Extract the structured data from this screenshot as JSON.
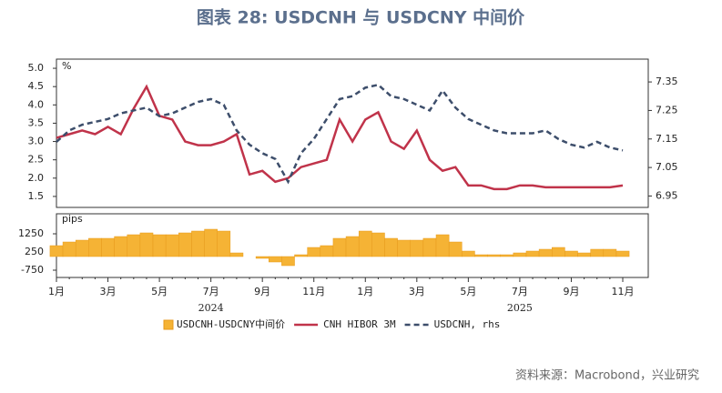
{
  "chart_data": {
    "type": "combo",
    "title": "图表 28: USDCNH 与 USDCNY 中间价",
    "source": "资料来源：Macrobond，兴业研究",
    "y_unit": "%",
    "y_unit_bottom": "pips",
    "year_labels": [
      "2024",
      "2025"
    ],
    "categories": [
      "1月",
      null,
      null,
      null,
      "3月",
      null,
      null,
      null,
      "5月",
      null,
      null,
      null,
      "7月",
      null,
      null,
      null,
      "9月",
      null,
      null,
      null,
      "11月",
      null,
      null,
      null,
      "1月",
      null,
      null,
      null,
      "3月",
      null,
      null,
      null,
      "5月",
      null,
      null,
      null,
      "7月",
      null,
      null,
      null,
      "9月",
      null,
      null,
      null,
      "11月"
    ],
    "ylim": [
      1.2,
      5.25
    ],
    "yticks": [
      1.5,
      {
        "value": 2,
        "label": "2.0"
      },
      2.5,
      {
        "value": 3,
        "label": "3.0"
      },
      3.5,
      {
        "value": 4,
        "label": "4.0"
      },
      4.5,
      {
        "value": 5,
        "label": "5.0"
      }
    ],
    "y2lim": [
      6.91,
      7.43
    ],
    "y2ticks": [
      6.95,
      7.05,
      7.15,
      7.25,
      7.35
    ],
    "ylim_bottom": [
      -1150,
      2350
    ],
    "yticks_bottom": [
      -750,
      250,
      1250
    ],
    "series": [
      {
        "name": "USDCNH-USDCNY中间价",
        "color": "#f5b335",
        "type": "bar",
        "axis": "bottom",
        "values": [
          600,
          800,
          900,
          1000,
          1000,
          1100,
          1200,
          1300,
          1200,
          1200,
          1300,
          1400,
          1500,
          1400,
          200,
          0,
          -100,
          -300,
          -500,
          100,
          500,
          600,
          1000,
          1100,
          1400,
          1300,
          1000,
          900,
          900,
          1000,
          1200,
          800,
          300,
          100,
          100,
          100,
          200,
          300,
          400,
          500,
          300,
          200,
          400,
          400,
          300
        ]
      },
      {
        "name": "CNH HIBOR 3M",
        "color": "#c0334a",
        "type": "line",
        "axis": "y",
        "values": [
          3.1,
          3.2,
          3.3,
          3.2,
          3.4,
          3.2,
          3.9,
          4.5,
          3.7,
          3.6,
          3.0,
          2.9,
          2.9,
          3.0,
          3.2,
          2.1,
          2.2,
          1.9,
          2.0,
          2.3,
          2.4,
          2.5,
          3.6,
          3.0,
          3.6,
          3.8,
          3.0,
          2.8,
          3.3,
          2.5,
          2.2,
          2.3,
          1.8,
          1.8,
          1.7,
          1.7,
          1.8,
          1.8,
          1.75,
          1.75,
          1.75,
          1.75,
          1.75,
          1.75,
          1.8
        ]
      },
      {
        "name": "USDCNH, rhs",
        "color": "#3d4e6b",
        "type": "dashed",
        "axis": "y2",
        "values": [
          7.14,
          7.18,
          7.2,
          7.21,
          7.22,
          7.24,
          7.25,
          7.26,
          7.23,
          7.24,
          7.26,
          7.28,
          7.29,
          7.27,
          7.18,
          7.13,
          7.1,
          7.08,
          7.0,
          7.1,
          7.15,
          7.22,
          7.29,
          7.3,
          7.33,
          7.34,
          7.3,
          7.29,
          7.27,
          7.25,
          7.32,
          7.26,
          7.22,
          7.2,
          7.18,
          7.17,
          7.17,
          7.17,
          7.18,
          7.15,
          7.13,
          7.12,
          7.14,
          7.12,
          7.11
        ]
      }
    ]
  }
}
